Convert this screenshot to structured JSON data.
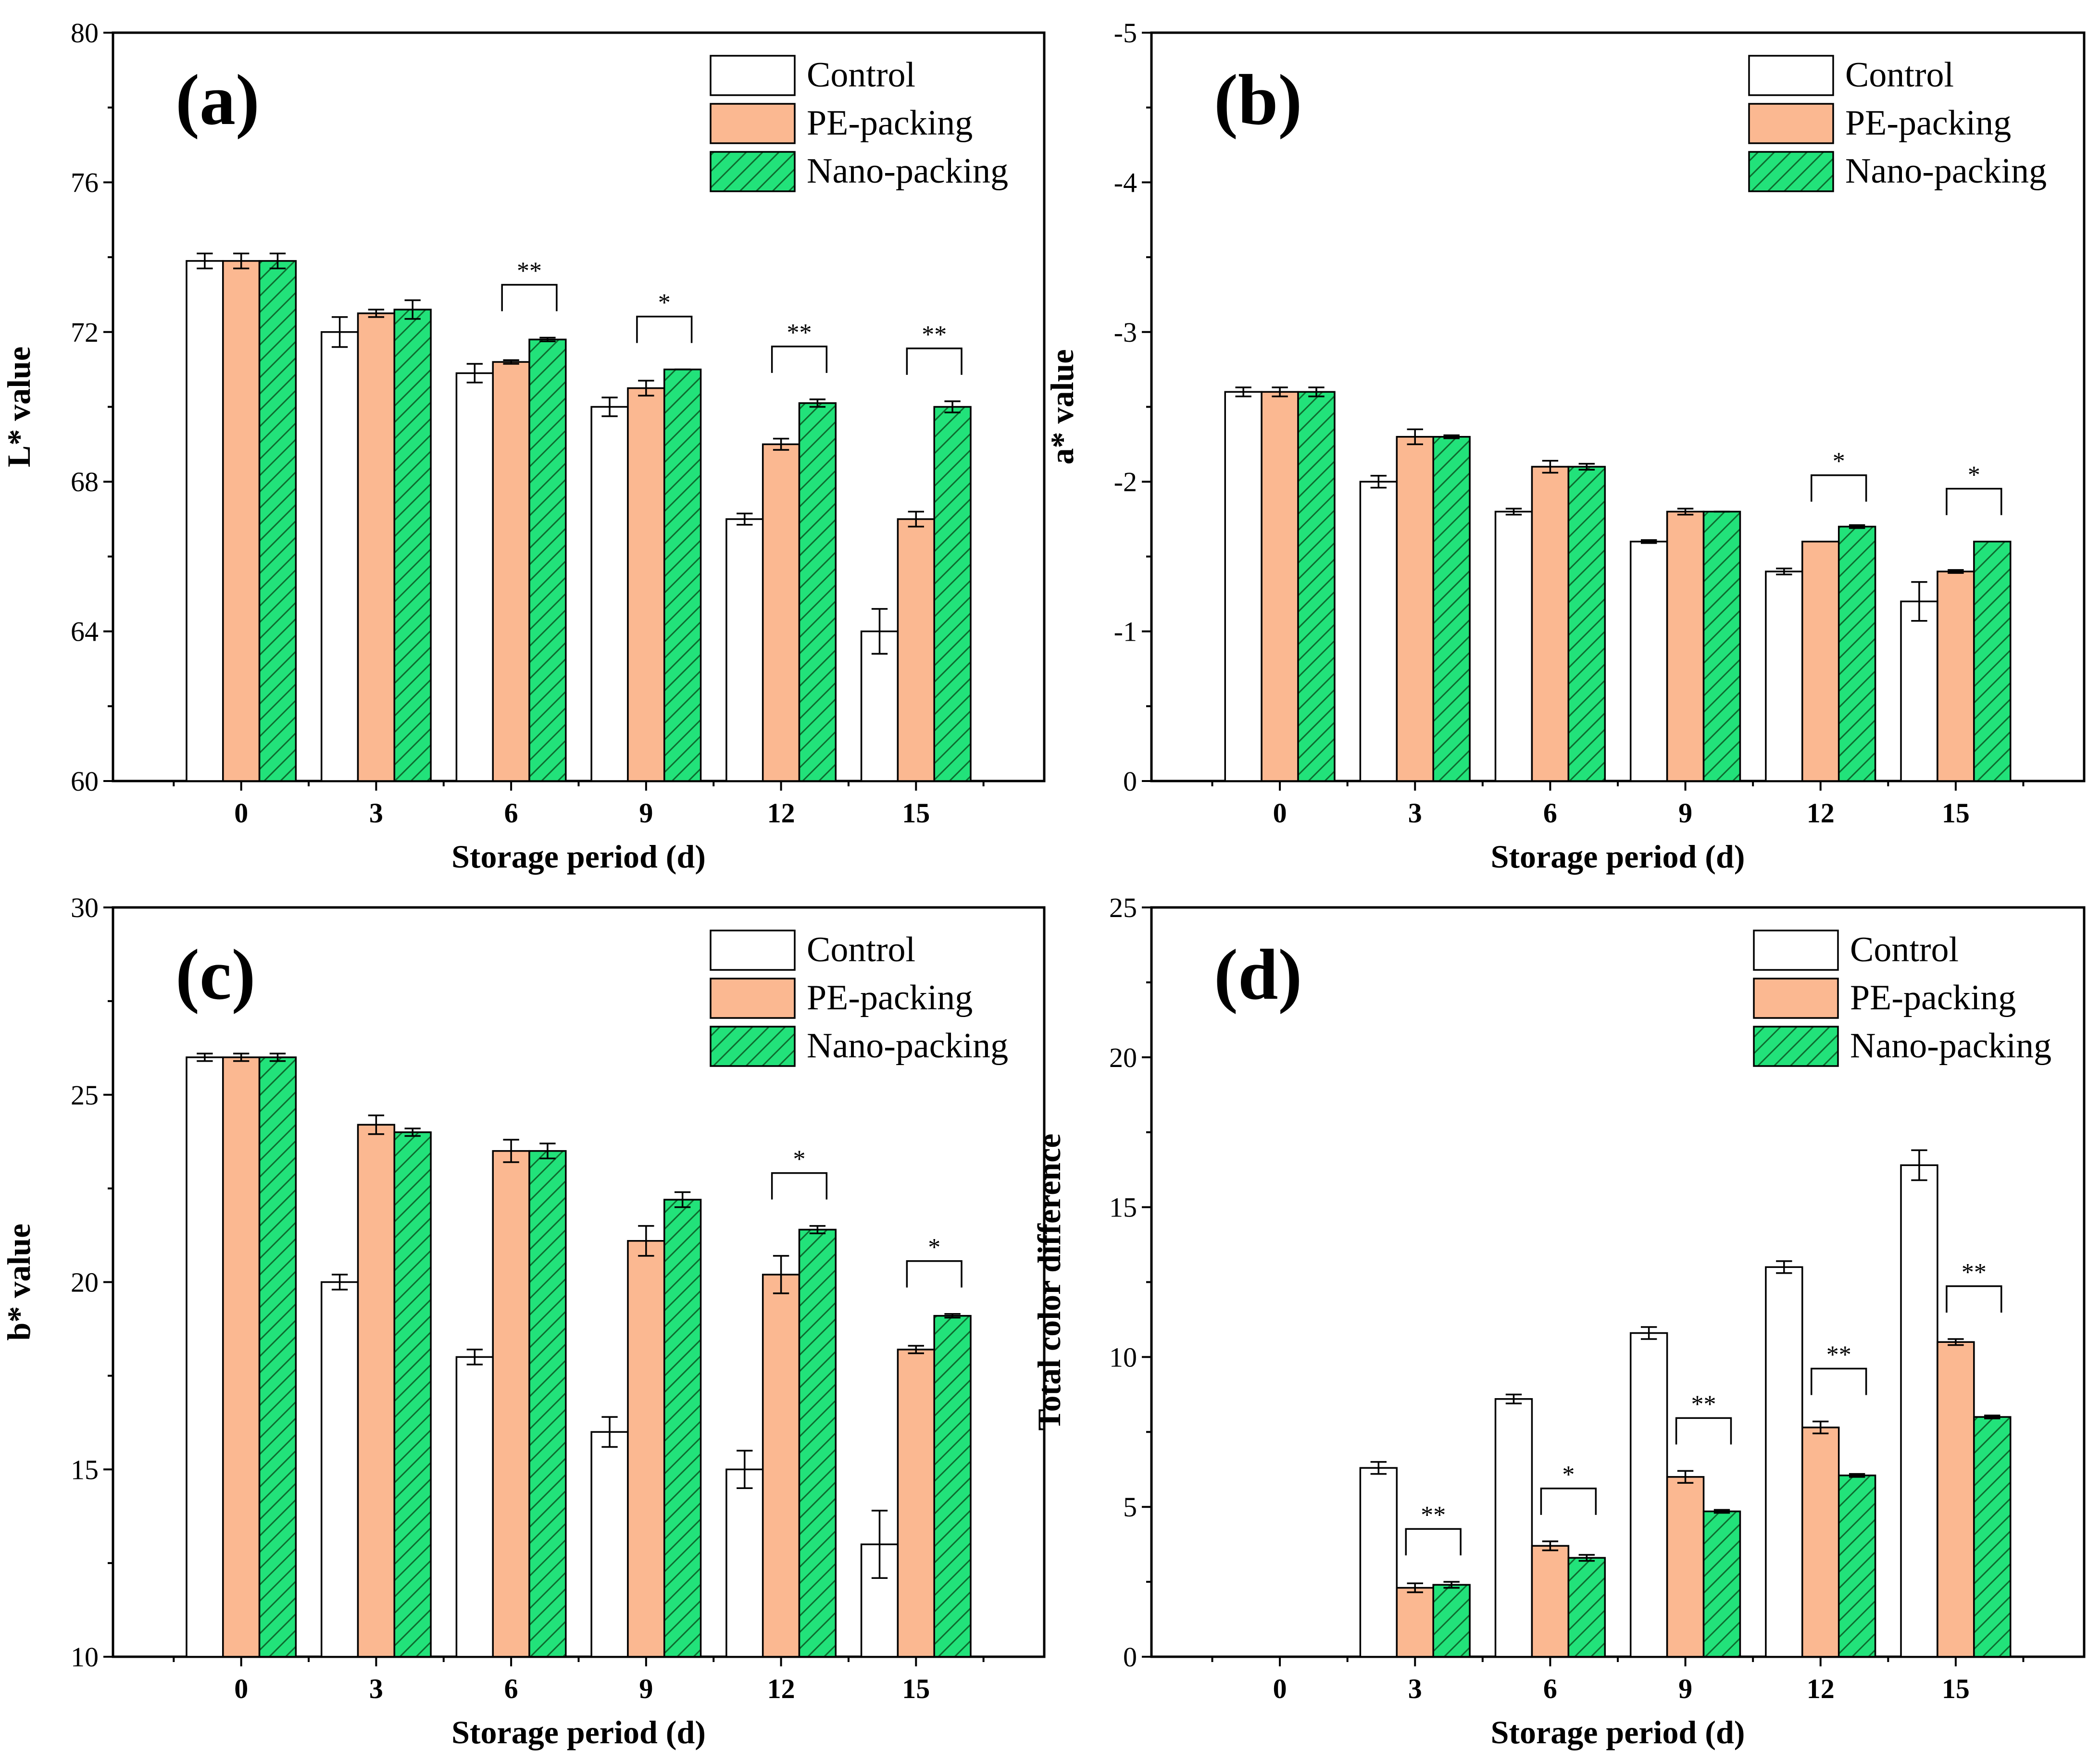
{
  "colors": {
    "control_fill": "#ffffff",
    "pe_fill": "#fbb891",
    "nano_fill": "#22e27a",
    "nano_hatch": "#0e6b2f",
    "axis": "#000000"
  },
  "legend": {
    "control": "Control",
    "pe": "PE-packing",
    "nano": "Nano-packing"
  },
  "chart_data": [
    {
      "type": "bar",
      "panel": "(a)",
      "xlabel": "Storage period (d)",
      "ylabel": "L* value",
      "categories": [
        "0",
        "3",
        "6",
        "9",
        "12",
        "15"
      ],
      "ylim": [
        60,
        80
      ],
      "yticks": [
        60,
        64,
        68,
        72,
        76,
        80
      ],
      "ytick_labels": [
        "60",
        "64",
        "68",
        "72",
        "76",
        "80"
      ],
      "series": [
        {
          "name": "Control",
          "values": [
            73.9,
            72.0,
            70.9,
            70.0,
            67.0,
            64.0
          ],
          "errors": [
            0.2,
            0.4,
            0.25,
            0.25,
            0.15,
            0.6
          ]
        },
        {
          "name": "PE-packing",
          "values": [
            73.9,
            72.5,
            71.2,
            70.5,
            69.0,
            67.0
          ],
          "errors": [
            0.2,
            0.1,
            0.05,
            0.2,
            0.15,
            0.2
          ]
        },
        {
          "name": "Nano-packing",
          "values": [
            73.9,
            72.6,
            71.8,
            71.0,
            70.1,
            70.0
          ],
          "errors": [
            0.2,
            0.25,
            0.05,
            0.0,
            0.1,
            0.15
          ]
        }
      ],
      "significance": [
        {
          "category": "6",
          "label": "**"
        },
        {
          "category": "9",
          "label": "*"
        },
        {
          "category": "12",
          "label": "**"
        },
        {
          "category": "15",
          "label": "**"
        }
      ]
    },
    {
      "type": "bar",
      "panel": "(b)",
      "xlabel": "Storage period (d)",
      "ylabel": "a* value",
      "categories": [
        "0",
        "3",
        "6",
        "9",
        "12",
        "15"
      ],
      "ylim": [
        0,
        -5
      ],
      "yticks": [
        0,
        -1,
        -2,
        -3,
        -4,
        -5
      ],
      "ytick_labels": [
        "0",
        "-1",
        "-2",
        "-3",
        "-4",
        "-5"
      ],
      "series": [
        {
          "name": "Control",
          "values": [
            -2.6,
            -2.0,
            -1.8,
            -1.6,
            -1.4,
            -1.2
          ],
          "errors": [
            0.03,
            0.04,
            0.02,
            0.01,
            0.02,
            0.13
          ]
        },
        {
          "name": "PE-packing",
          "values": [
            -2.6,
            -2.3,
            -2.1,
            -1.8,
            -1.6,
            -1.4
          ],
          "errors": [
            0.03,
            0.05,
            0.04,
            0.02,
            0.0,
            0.01
          ]
        },
        {
          "name": "Nano-packing",
          "values": [
            -2.6,
            -2.3,
            -2.1,
            -1.8,
            -1.7,
            -1.6
          ],
          "errors": [
            0.03,
            0.01,
            0.02,
            0.0,
            0.01,
            0.0
          ]
        }
      ],
      "significance": [
        {
          "category": "12",
          "label": "*"
        },
        {
          "category": "15",
          "label": "*"
        }
      ]
    },
    {
      "type": "bar",
      "panel": "(c)",
      "xlabel": "Storage period (d)",
      "ylabel": "b* value",
      "categories": [
        "0",
        "3",
        "6",
        "9",
        "12",
        "15"
      ],
      "ylim": [
        10,
        30
      ],
      "yticks": [
        10,
        15,
        20,
        25,
        30
      ],
      "ytick_labels": [
        "10",
        "15",
        "20",
        "25",
        "30"
      ],
      "series": [
        {
          "name": "Control",
          "values": [
            26.0,
            20.0,
            18.0,
            16.0,
            15.0,
            13.0
          ],
          "errors": [
            0.1,
            0.2,
            0.2,
            0.4,
            0.5,
            0.9
          ]
        },
        {
          "name": "PE-packing",
          "values": [
            26.0,
            24.2,
            23.5,
            21.1,
            20.2,
            18.2
          ],
          "errors": [
            0.1,
            0.25,
            0.3,
            0.4,
            0.5,
            0.1
          ]
        },
        {
          "name": "Nano-packing",
          "values": [
            26.0,
            24.0,
            23.5,
            22.2,
            21.4,
            19.1
          ],
          "errors": [
            0.1,
            0.1,
            0.2,
            0.2,
            0.1,
            0.05
          ]
        }
      ],
      "significance": [
        {
          "category": "12",
          "label": "*"
        },
        {
          "category": "15",
          "label": "*"
        }
      ]
    },
    {
      "type": "bar",
      "panel": "(d)",
      "xlabel": "Storage period (d)",
      "ylabel": "Total color difference",
      "categories": [
        "0",
        "3",
        "6",
        "9",
        "12",
        "15"
      ],
      "ylim": [
        0,
        25
      ],
      "yticks": [
        0,
        5,
        10,
        15,
        20,
        25
      ],
      "ytick_labels": [
        "0",
        "5",
        "10",
        "15",
        "20",
        "25"
      ],
      "series": [
        {
          "name": "Control",
          "values": [
            0,
            6.3,
            8.6,
            10.8,
            13.0,
            16.4
          ],
          "errors": [
            0,
            0.2,
            0.15,
            0.2,
            0.2,
            0.5
          ]
        },
        {
          "name": "PE-packing",
          "values": [
            0,
            2.3,
            3.7,
            6.0,
            7.65,
            10.5
          ],
          "errors": [
            0,
            0.15,
            0.15,
            0.2,
            0.2,
            0.1
          ]
        },
        {
          "name": "Nano-packing",
          "values": [
            0,
            2.4,
            3.3,
            4.85,
            6.05,
            8.0
          ],
          "errors": [
            0,
            0.1,
            0.1,
            0.05,
            0.05,
            0.05
          ]
        }
      ],
      "significance": [
        {
          "category": "3",
          "label": "**"
        },
        {
          "category": "6",
          "label": "*"
        },
        {
          "category": "9",
          "label": "**"
        },
        {
          "category": "12",
          "label": "**"
        },
        {
          "category": "15",
          "label": "**"
        }
      ]
    }
  ]
}
